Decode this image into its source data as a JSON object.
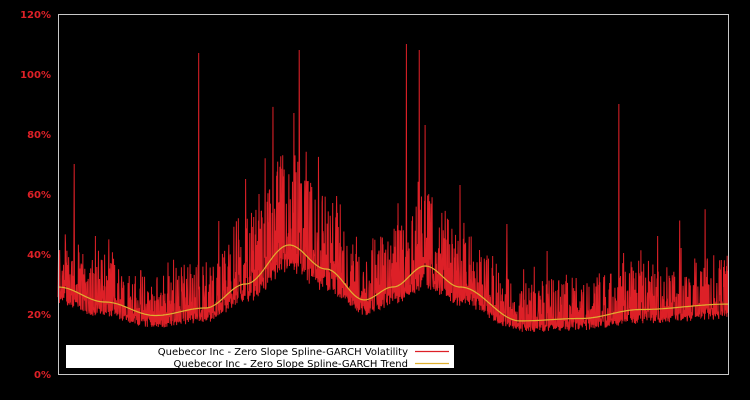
{
  "chart_data": {
    "type": "line",
    "title": "",
    "xlabel": "",
    "ylabel": "",
    "ylim": [
      0,
      120
    ],
    "y_ticks": [
      "0%",
      "20%",
      "40%",
      "60%",
      "80%",
      "100%",
      "120%"
    ],
    "y_tick_values": [
      0,
      20,
      40,
      60,
      80,
      100,
      120
    ],
    "grid": false,
    "legend_position": "lower-left inside plot",
    "x_range_normalized": [
      0,
      1
    ],
    "series": [
      {
        "name": "Quebecor Inc - Zero Slope Spline-GARCH Volatility",
        "color": "#dd2027",
        "note": "high-frequency daily volatility; baseline follows trend with spikes",
        "spikes": [
          {
            "x": 0.024,
            "y": 70
          },
          {
            "x": 0.056,
            "y": 46
          },
          {
            "x": 0.21,
            "y": 107
          },
          {
            "x": 0.24,
            "y": 51
          },
          {
            "x": 0.28,
            "y": 65
          },
          {
            "x": 0.3,
            "y": 60
          },
          {
            "x": 0.352,
            "y": 87
          },
          {
            "x": 0.36,
            "y": 108
          },
          {
            "x": 0.41,
            "y": 57
          },
          {
            "x": 0.42,
            "y": 36
          },
          {
            "x": 0.52,
            "y": 110
          },
          {
            "x": 0.539,
            "y": 108
          },
          {
            "x": 0.548,
            "y": 83
          },
          {
            "x": 0.6,
            "y": 63
          },
          {
            "x": 0.67,
            "y": 50
          },
          {
            "x": 0.73,
            "y": 41
          },
          {
            "x": 0.837,
            "y": 90
          },
          {
            "x": 0.895,
            "y": 46
          },
          {
            "x": 0.93,
            "y": 42
          },
          {
            "x": 0.99,
            "y": 38
          }
        ]
      },
      {
        "name": "Quebecor Inc - Zero Slope Spline-GARCH Trend",
        "color": "#e0b030",
        "points": [
          {
            "x": 0.0,
            "y": 29
          },
          {
            "x": 0.07,
            "y": 24
          },
          {
            "x": 0.145,
            "y": 19.5
          },
          {
            "x": 0.22,
            "y": 22
          },
          {
            "x": 0.28,
            "y": 30
          },
          {
            "x": 0.345,
            "y": 43
          },
          {
            "x": 0.4,
            "y": 35
          },
          {
            "x": 0.457,
            "y": 24.7
          },
          {
            "x": 0.5,
            "y": 29
          },
          {
            "x": 0.548,
            "y": 36
          },
          {
            "x": 0.6,
            "y": 29
          },
          {
            "x": 0.69,
            "y": 17.7
          },
          {
            "x": 0.78,
            "y": 18.5
          },
          {
            "x": 0.87,
            "y": 21.5
          },
          {
            "x": 1.0,
            "y": 23.3
          }
        ]
      }
    ]
  },
  "legend": {
    "items": [
      {
        "label": "Quebecor Inc - Zero Slope Spline-GARCH Volatility",
        "color": "#dd2027"
      },
      {
        "label": "Quebecor Inc - Zero Slope Spline-GARCH Trend",
        "color": "#e0b030"
      }
    ]
  },
  "colors": {
    "background": "#000000",
    "axis": "#c8c8c8",
    "tick_label": "#dd2027",
    "legend_bg": "#ffffff"
  }
}
